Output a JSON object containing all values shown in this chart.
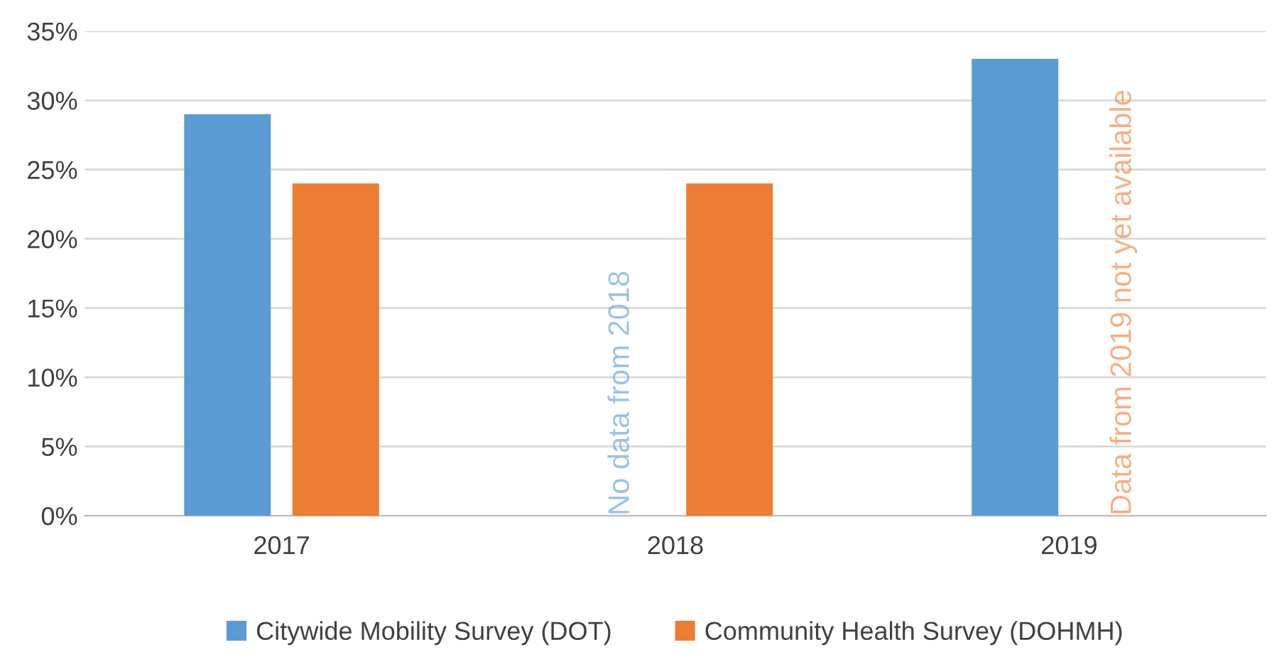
{
  "chart_data": {
    "type": "bar",
    "categories": [
      "2017",
      "2018",
      "2019"
    ],
    "series": [
      {
        "name": "Citywide Mobility Survey (DOT)",
        "color": "#5b9bd5",
        "values": [
          29,
          null,
          33
        ]
      },
      {
        "name": "Community Health Survey (DOHMH)",
        "color": "#ed7d31",
        "values": [
          24,
          24,
          null
        ]
      }
    ],
    "ylim": [
      0,
      35
    ],
    "yticks": [
      {
        "value": 0,
        "label": "0%"
      },
      {
        "value": 5,
        "label": "5%"
      },
      {
        "value": 10,
        "label": "10%"
      },
      {
        "value": 15,
        "label": "15%"
      },
      {
        "value": 20,
        "label": "20%"
      },
      {
        "value": 25,
        "label": "25%"
      },
      {
        "value": 30,
        "label": "30%"
      },
      {
        "value": 35,
        "label": "35%"
      }
    ],
    "grid": "y",
    "legend": "bottom",
    "annotations": [
      "No data from 2018",
      "Data from 2019 not yet available"
    ]
  }
}
